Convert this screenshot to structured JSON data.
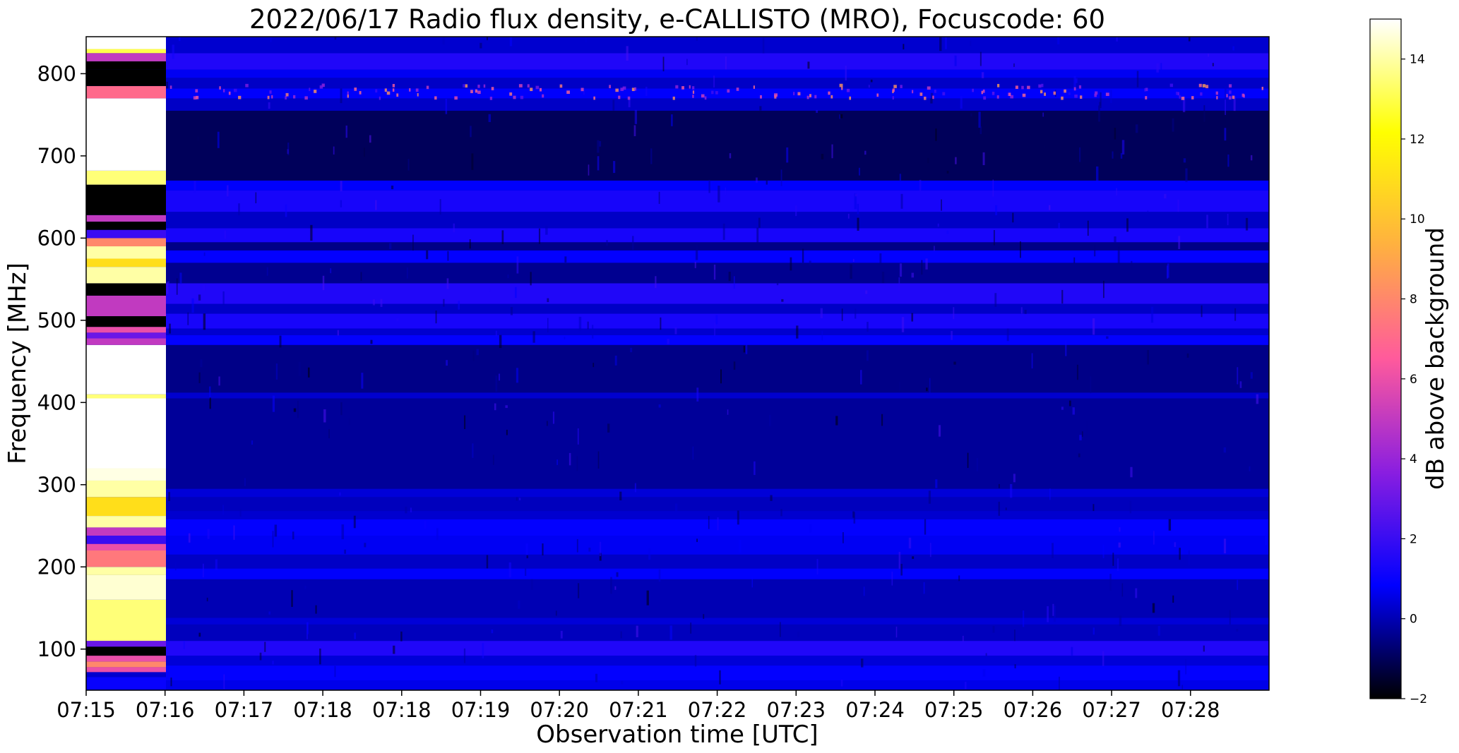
{
  "chart_data": {
    "type": "heatmap",
    "title": "2022/06/17  Radio flux density, e-CALLISTO (MRO), Focuscode: 60",
    "xlabel": "Observation time [UTC]",
    "ylabel": "Frequency [MHz]",
    "x_tick_labels": [
      "07:15",
      "07:16",
      "07:17",
      "07:18",
      "07:18",
      "07:19",
      "07:20",
      "07:21",
      "07:22",
      "07:23",
      "07:24",
      "07:25",
      "07:26",
      "07:27",
      "07:28"
    ],
    "y_ticks": [
      100,
      200,
      300,
      400,
      500,
      600,
      700,
      800
    ],
    "ylim": [
      50,
      845
    ],
    "colorbar": {
      "label": "dB above background",
      "ticks": [
        -2,
        0,
        2,
        4,
        6,
        8,
        10,
        12,
        14
      ],
      "range": [
        -2,
        15
      ],
      "colormap": "gnuplot2",
      "colors": [
        "#000000",
        "#0000ff",
        "#8a1ee0",
        "#ff5a9c",
        "#ffb040",
        "#ffff00",
        "#ffffff"
      ]
    },
    "calibration_segment": {
      "time_label_start": "07:15",
      "time_label_end": "07:16",
      "bands_mhz_db": [
        [
          50,
          66,
          1
        ],
        [
          66,
          72,
          0.3
        ],
        [
          72,
          78,
          6
        ],
        [
          78,
          85,
          8
        ],
        [
          85,
          92,
          6
        ],
        [
          92,
          103,
          -2
        ],
        [
          103,
          110,
          3
        ],
        [
          110,
          160,
          13.5
        ],
        [
          160,
          190,
          14.5
        ],
        [
          190,
          200,
          14
        ],
        [
          200,
          220,
          7.5
        ],
        [
          220,
          228,
          6
        ],
        [
          228,
          238,
          2
        ],
        [
          238,
          248,
          5
        ],
        [
          248,
          262,
          14
        ],
        [
          262,
          285,
          11
        ],
        [
          285,
          305,
          14
        ],
        [
          305,
          320,
          14.7
        ],
        [
          320,
          405,
          15
        ],
        [
          405,
          410,
          13.5
        ],
        [
          410,
          470,
          15
        ],
        [
          470,
          478,
          5
        ],
        [
          478,
          485,
          3
        ],
        [
          485,
          492,
          6
        ],
        [
          492,
          505,
          -2
        ],
        [
          505,
          530,
          5
        ],
        [
          530,
          545,
          -2
        ],
        [
          545,
          565,
          14
        ],
        [
          565,
          575,
          11
        ],
        [
          575,
          590,
          14
        ],
        [
          590,
          600,
          8
        ],
        [
          600,
          610,
          2
        ],
        [
          610,
          620,
          -2
        ],
        [
          620,
          628,
          5
        ],
        [
          628,
          665,
          -2
        ],
        [
          665,
          682,
          13.5
        ],
        [
          682,
          770,
          15
        ],
        [
          770,
          785,
          7
        ],
        [
          785,
          805,
          -2
        ],
        [
          805,
          815,
          -2
        ],
        [
          815,
          825,
          5
        ],
        [
          825,
          830,
          13
        ],
        [
          830,
          845,
          15
        ]
      ]
    },
    "main_background_bands_mhz_db": [
      [
        50,
        62,
        0.6
      ],
      [
        62,
        80,
        0.9
      ],
      [
        80,
        92,
        0.4
      ],
      [
        92,
        110,
        1.5
      ],
      [
        110,
        130,
        0.1
      ],
      [
        130,
        138,
        0.4
      ],
      [
        138,
        185,
        0.0
      ],
      [
        185,
        198,
        0.8
      ],
      [
        198,
        215,
        0.2
      ],
      [
        215,
        238,
        0.7
      ],
      [
        238,
        258,
        0.9
      ],
      [
        258,
        268,
        0.3
      ],
      [
        268,
        285,
        0.1
      ],
      [
        285,
        295,
        0.4
      ],
      [
        295,
        405,
        -0.3
      ],
      [
        405,
        412,
        0.3
      ],
      [
        412,
        470,
        -0.5
      ],
      [
        470,
        482,
        0.9
      ],
      [
        482,
        490,
        0.3
      ],
      [
        490,
        508,
        1.3
      ],
      [
        508,
        520,
        0.2
      ],
      [
        520,
        545,
        1.5
      ],
      [
        545,
        570,
        -0.4
      ],
      [
        570,
        585,
        0.9
      ],
      [
        585,
        595,
        -0.5
      ],
      [
        595,
        612,
        1.3
      ],
      [
        612,
        632,
        0.2
      ],
      [
        632,
        658,
        1.3
      ],
      [
        658,
        670,
        0.8
      ],
      [
        670,
        755,
        -1.0
      ],
      [
        755,
        770,
        0.2
      ],
      [
        770,
        782,
        0.8
      ],
      [
        782,
        795,
        0.2
      ],
      [
        795,
        805,
        0.7
      ],
      [
        805,
        825,
        1.5
      ],
      [
        825,
        845,
        0.3
      ]
    ]
  }
}
